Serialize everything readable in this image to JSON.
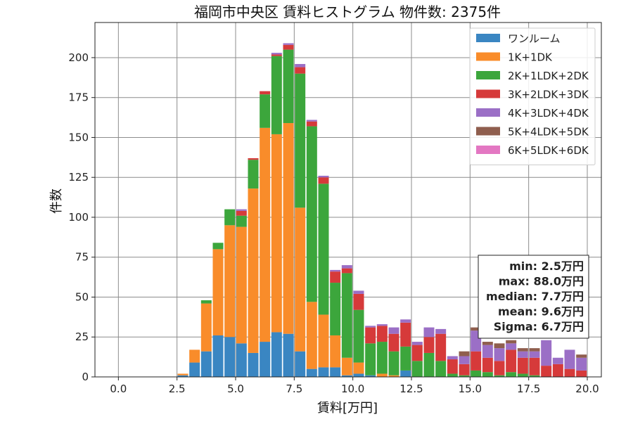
{
  "chart_data": {
    "type": "bar",
    "title": "福岡市中央区 賃料ヒストグラム 物件数: 2375件",
    "xlabel": "賃料[万円]",
    "ylabel": "件数",
    "xlim": [
      -1.0,
      20.6
    ],
    "ylim": [
      0,
      222
    ],
    "xticks": [
      0.0,
      2.5,
      5.0,
      7.5,
      10.0,
      12.5,
      15.0,
      17.5,
      20.0
    ],
    "xtick_labels": [
      "0.0",
      "2.5",
      "5.0",
      "7.5",
      "10.0",
      "12.5",
      "15.0",
      "17.5",
      "20.0"
    ],
    "yticks": [
      0,
      25,
      50,
      75,
      100,
      125,
      150,
      175,
      200
    ],
    "ytick_labels": [
      "0",
      "25",
      "50",
      "75",
      "100",
      "125",
      "150",
      "175",
      "200"
    ],
    "grid": true,
    "stacked": true,
    "bin_width": 0.5,
    "x": [
      2.0,
      2.5,
      3.0,
      3.5,
      4.0,
      4.5,
      5.0,
      5.5,
      6.0,
      6.5,
      7.0,
      7.5,
      8.0,
      8.5,
      9.0,
      9.5,
      10.0,
      10.5,
      11.0,
      11.5,
      12.0,
      12.5,
      13.0,
      13.5,
      14.0,
      14.5,
      15.0,
      15.5,
      16.0,
      16.5,
      17.0,
      17.5,
      18.0,
      18.5,
      19.0,
      19.5
    ],
    "legend_position": "top-right",
    "series": [
      {
        "name": "ワンルーム",
        "color": "#3a86c2",
        "values": [
          0,
          1,
          9,
          16,
          26,
          25,
          21,
          15,
          22,
          28,
          27,
          16,
          5,
          6,
          6,
          1,
          2,
          1,
          0,
          0,
          4,
          0,
          0,
          0,
          0,
          0,
          0,
          0,
          0,
          0,
          0,
          0,
          0,
          0,
          0,
          0
        ]
      },
      {
        "name": "1K+1DK",
        "color": "#f98c2a",
        "values": [
          0,
          1,
          8,
          30,
          54,
          70,
          73,
          103,
          134,
          124,
          132,
          90,
          42,
          33,
          20,
          11,
          7,
          0,
          2,
          1,
          0,
          0,
          0,
          0,
          0,
          0,
          0,
          0,
          0,
          0,
          0,
          0,
          0,
          0,
          0,
          0
        ]
      },
      {
        "name": "2K+1LDK+2DK",
        "color": "#3ca63c",
        "values": [
          0,
          0,
          0,
          2,
          4,
          10,
          7,
          18,
          21,
          49,
          46,
          84,
          110,
          82,
          33,
          53,
          33,
          20,
          20,
          15,
          15,
          10,
          15,
          10,
          2,
          1,
          4,
          3,
          1,
          3,
          2,
          1,
          0,
          0,
          0,
          0
        ]
      },
      {
        "name": "3K+2LDK+3DK",
        "color": "#d63a3a",
        "values": [
          0,
          0,
          0,
          0,
          0,
          0,
          3,
          1,
          2,
          1,
          3,
          4,
          3,
          4,
          7,
          3,
          10,
          10,
          10,
          11,
          15,
          10,
          10,
          17,
          9,
          7,
          12,
          9,
          9,
          14,
          10,
          11,
          7,
          8,
          5,
          4
        ]
      },
      {
        "name": "4K+3LDK+4DK",
        "color": "#9b6fc6",
        "values": [
          0,
          0,
          0,
          0,
          0,
          0,
          1,
          0,
          0,
          1,
          1,
          2,
          1,
          1,
          1,
          2,
          2,
          1,
          1,
          4,
          2,
          2,
          6,
          3,
          2,
          5,
          13,
          8,
          8,
          4,
          4,
          4,
          16,
          4,
          12,
          8
        ]
      },
      {
        "name": "5K+4LDK+5DK",
        "color": "#8f5e4e",
        "values": [
          0,
          0,
          0,
          0,
          0,
          0,
          0,
          0,
          0,
          0,
          0,
          0,
          0,
          0,
          0,
          0,
          0,
          0,
          0,
          0,
          0,
          0,
          0,
          0,
          0,
          3,
          2,
          2,
          3,
          2,
          2,
          2,
          0,
          0,
          0,
          2
        ]
      },
      {
        "name": "6K+5LDK+6DK",
        "color": "#e377c2",
        "values": [
          0,
          0,
          0,
          0,
          0,
          0,
          0,
          0,
          0,
          0,
          0,
          0,
          0,
          0,
          0,
          0,
          0,
          0,
          0,
          0,
          0,
          0,
          0,
          0,
          0,
          0,
          0,
          0,
          0,
          0,
          0,
          0,
          0,
          0,
          0,
          0
        ]
      }
    ],
    "stats": [
      "min: 2.5万円",
      "max: 88.0万円",
      "median: 7.7万円",
      "mean: 9.6万円",
      "Sigma: 6.7万円"
    ]
  }
}
